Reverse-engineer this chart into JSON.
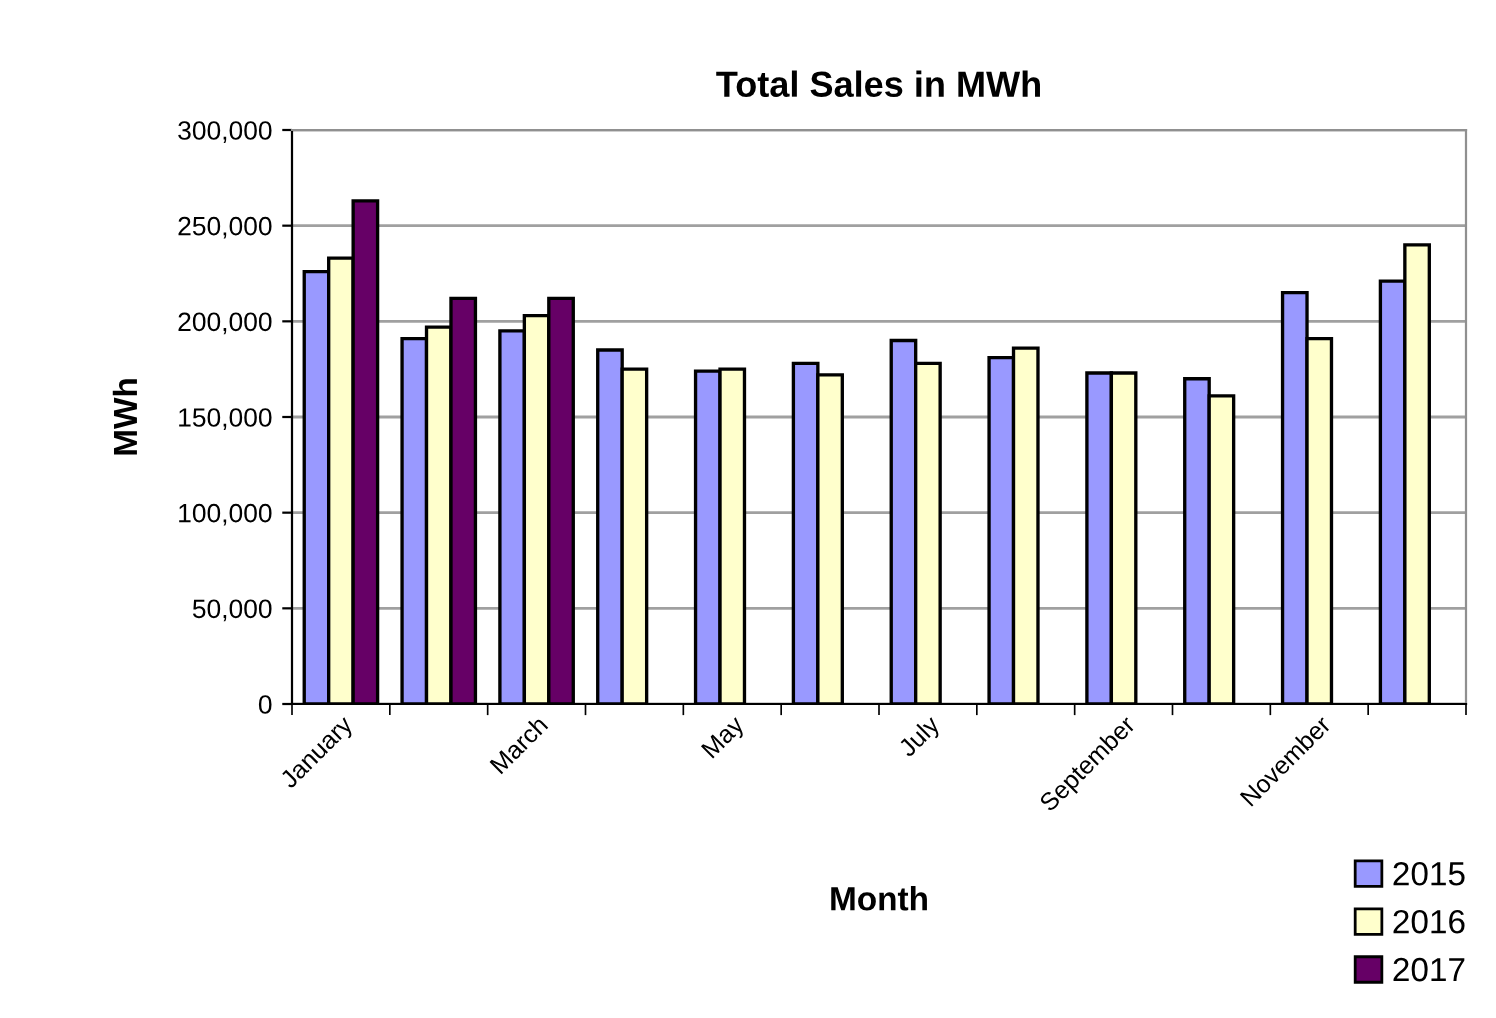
{
  "chart_data": {
    "type": "bar",
    "title": "Total Sales in MWh",
    "xlabel": "Month",
    "ylabel": "MWh",
    "categories": [
      "January",
      null,
      "March",
      null,
      "May",
      null,
      "July",
      null,
      "September",
      null,
      "November",
      null
    ],
    "series": [
      {
        "name": "2015",
        "color": "#9999ff",
        "values": [
          226000,
          191000,
          195000,
          185000,
          174000,
          178000,
          190000,
          181000,
          173000,
          170000,
          215000,
          221000
        ]
      },
      {
        "name": "2016",
        "color": "#ffffcc",
        "values": [
          233000,
          197000,
          203000,
          175000,
          175000,
          172000,
          178000,
          186000,
          173000,
          161000,
          191000,
          240000
        ]
      },
      {
        "name": "2017",
        "color": "#660066",
        "values": [
          263000,
          212000,
          212000,
          null,
          null,
          null,
          null,
          null,
          null,
          null,
          null,
          null
        ]
      }
    ],
    "ylim": [
      0,
      300000
    ],
    "yticks": [
      {
        "value": 0,
        "label": "0"
      },
      {
        "value": 50000,
        "label": "50,000"
      },
      {
        "value": 100000,
        "label": "100,000"
      },
      {
        "value": 150000,
        "label": "150,000"
      },
      {
        "value": 200000,
        "label": "200,000"
      },
      {
        "value": 250000,
        "label": "250,000"
      },
      {
        "value": 300000,
        "label": "300,000"
      }
    ],
    "grid": "y",
    "legend": "bottom right"
  }
}
